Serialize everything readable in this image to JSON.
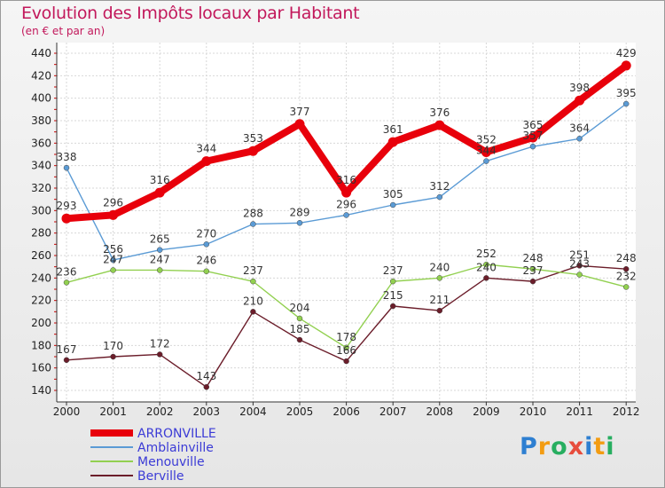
{
  "title": "Evolution des Impôts locaux par Habitant",
  "subtitle": "(en € et par an)",
  "logo": {
    "text": "Proxiti",
    "letters": [
      "P",
      "r",
      "o",
      "x",
      "i",
      "t",
      "i"
    ],
    "colors": [
      "#2e7fd1",
      "#f39c12",
      "#27ae60",
      "#e74c3c",
      "#2e7fd1",
      "#f39c12",
      "#27ae60"
    ]
  },
  "chart_data": {
    "type": "line",
    "title": "Evolution des Impôts locaux par Habitant",
    "subtitle": "(en € et par an)",
    "x": [
      "2000",
      "2001",
      "2002",
      "2003",
      "2004",
      "2005",
      "2006",
      "2007",
      "2008",
      "2009",
      "2010",
      "2011",
      "2012"
    ],
    "ylim": [
      140,
      440
    ],
    "yticks": [
      "140",
      "160",
      "180",
      "200",
      "220",
      "240",
      "260",
      "280",
      "300",
      "320",
      "340",
      "360",
      "380",
      "400",
      "420",
      "440"
    ],
    "grid": true,
    "legend_position": "bottom-left",
    "series": [
      {
        "name": "ARRONVILLE",
        "color": "#e8000b",
        "values": [
          293,
          296,
          316,
          344,
          353,
          377,
          316,
          361,
          376,
          352,
          365,
          398,
          429
        ],
        "labels": [
          "293",
          "296",
          "316",
          "344",
          "353",
          "377",
          "316",
          "361",
          "376",
          "352",
          "365",
          "398",
          "429"
        ]
      },
      {
        "name": "Amblainville",
        "color": "#5b9bd5",
        "values": [
          338,
          256,
          265,
          270,
          288,
          289,
          296,
          305,
          312,
          344,
          357,
          364,
          395
        ],
        "labels": [
          "338",
          "256",
          "265",
          "270",
          "288",
          "289",
          "296",
          "305",
          "312",
          "344",
          "357",
          "364",
          "395"
        ]
      },
      {
        "name": "Menouville",
        "color": "#92d050",
        "values": [
          236,
          247,
          247,
          246,
          237,
          204,
          178,
          237,
          240,
          252,
          248,
          243,
          232
        ],
        "labels": [
          "236",
          "247",
          "247",
          "246",
          "237",
          "204",
          "178",
          "237",
          "240",
          "252",
          "248",
          "243",
          "232"
        ]
      },
      {
        "name": "Berville",
        "color": "#6b1d2a",
        "values": [
          167,
          170,
          172,
          143,
          210,
          185,
          166,
          215,
          211,
          240,
          237,
          251,
          248
        ],
        "labels": [
          "167",
          "170",
          "172",
          "143",
          "210",
          "185",
          "166",
          "215",
          "211",
          "240",
          "237",
          "251",
          "248"
        ]
      }
    ]
  }
}
